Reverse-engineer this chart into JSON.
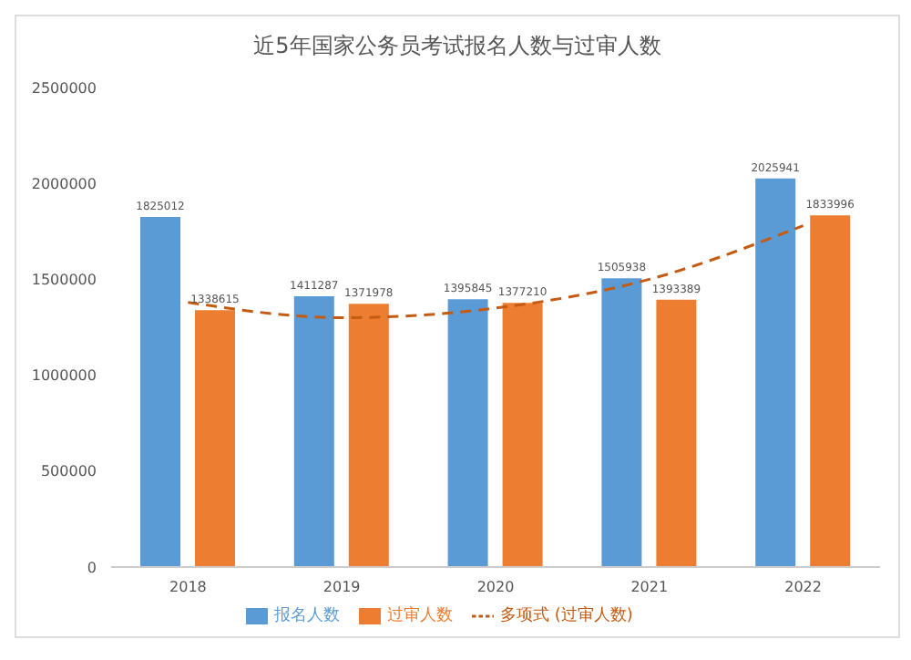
{
  "chart_data": {
    "type": "bar",
    "title": "近5年国家公务员考试报名人数与过审人数",
    "categories": [
      "2018",
      "2019",
      "2020",
      "2021",
      "2022"
    ],
    "series": [
      {
        "name": "报名人数",
        "color": "#5b9bd5",
        "values": [
          1825012,
          1411287,
          1395845,
          1505938,
          2025941
        ],
        "value_labels": [
          "1825012",
          "1411287",
          "1395845",
          "1505938",
          "2025941"
        ]
      },
      {
        "name": "过审人数",
        "color": "#ed7d31",
        "values": [
          1338615,
          1371978,
          1377210,
          1393389,
          1833996
        ],
        "value_labels": [
          "1338615",
          "1371978",
          "1377210",
          "1393389",
          "1833996"
        ]
      },
      {
        "name": "多项式 (过审人数)",
        "type": "line",
        "line_style": "dashed",
        "color": "#c55a11",
        "values": [
          1380000,
          1300000,
          1350000,
          1500000,
          1780000
        ]
      }
    ],
    "ylim": [
      0,
      2500000
    ],
    "yticks": [
      0,
      500000,
      1000000,
      1500000,
      2000000,
      2500000
    ],
    "grid": false,
    "legend": "bottom"
  }
}
